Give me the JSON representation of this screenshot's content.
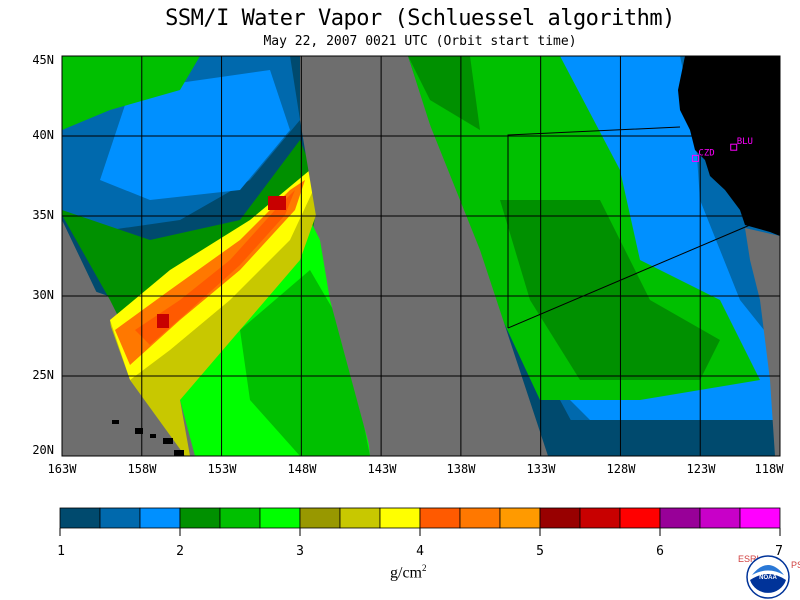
{
  "title": "SSM/I Water Vapor (Schluessel algorithm)",
  "subtitle": "May 22, 2007  0021 UTC  (Orbit start time)",
  "map": {
    "lat_labels": [
      "45N",
      "40N",
      "35N",
      "30N",
      "25N",
      "20N"
    ],
    "lon_labels": [
      "163W",
      "158W",
      "153W",
      "148W",
      "143W",
      "138W",
      "133W",
      "128W",
      "123W",
      "118W"
    ],
    "lat_range": [
      20,
      45
    ],
    "lon_range": [
      -163,
      -118
    ],
    "no_data_color": "#6e6e6e",
    "land_color": "#000000",
    "grid": true,
    "stations": [
      {
        "code": "CZD",
        "lon": -123.3,
        "lat": 38.6,
        "color": "#ff00ff"
      },
      {
        "code": "BLU",
        "lon": -120.9,
        "lat": 39.3,
        "color": "#ff00ff"
      }
    ]
  },
  "colorbar": {
    "colors": [
      "#004a6e",
      "#0069ad",
      "#0090ff",
      "#009000",
      "#00c000",
      "#00ff00",
      "#989800",
      "#c8c800",
      "#ffff00",
      "#ff5a00",
      "#ff7800",
      "#ff9a00",
      "#980000",
      "#c80000",
      "#ff0000",
      "#980098",
      "#c800c8",
      "#ff00ff"
    ],
    "tick_labels": [
      "1",
      "2",
      "3",
      "4",
      "5",
      "6",
      "7"
    ],
    "units_base": "g/cm",
    "units_sup": "2"
  },
  "logo": {
    "left_letters": "ESRL",
    "right_letters": "PSD",
    "name": "NOAA"
  }
}
